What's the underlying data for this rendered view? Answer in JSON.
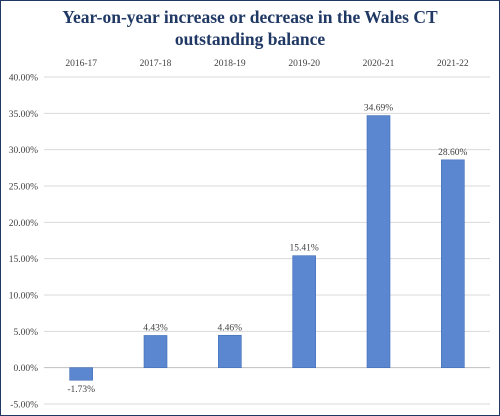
{
  "chart_data": {
    "type": "bar",
    "title_lines": [
      "Year-on-year increase or decrease in the Wales CT",
      "outstanding balance"
    ],
    "categories": [
      "2016-17",
      "2017-18",
      "2018-19",
      "2019-20",
      "2020-21",
      "2021-22"
    ],
    "values": [
      -1.73,
      4.43,
      4.46,
      15.41,
      34.69,
      28.6
    ],
    "data_labels": [
      "-1.73%",
      "4.43%",
      "4.46%",
      "15.41%",
      "34.69%",
      "28.60%"
    ],
    "y_ticks": [
      "-5.00%",
      "0.00%",
      "5.00%",
      "10.00%",
      "15.00%",
      "20.00%",
      "25.00%",
      "30.00%",
      "35.00%",
      "40.00%"
    ],
    "ylim": [
      -5,
      40
    ],
    "grid": true,
    "category_axis_position": "top",
    "xlabel": "",
    "ylabel": "",
    "colors": {
      "bar": "#5b87d0",
      "bar_edge": "#3f6db8",
      "title": "#1f3864",
      "grid": "#d9d9d9",
      "axis": "#bfbfbf"
    }
  }
}
